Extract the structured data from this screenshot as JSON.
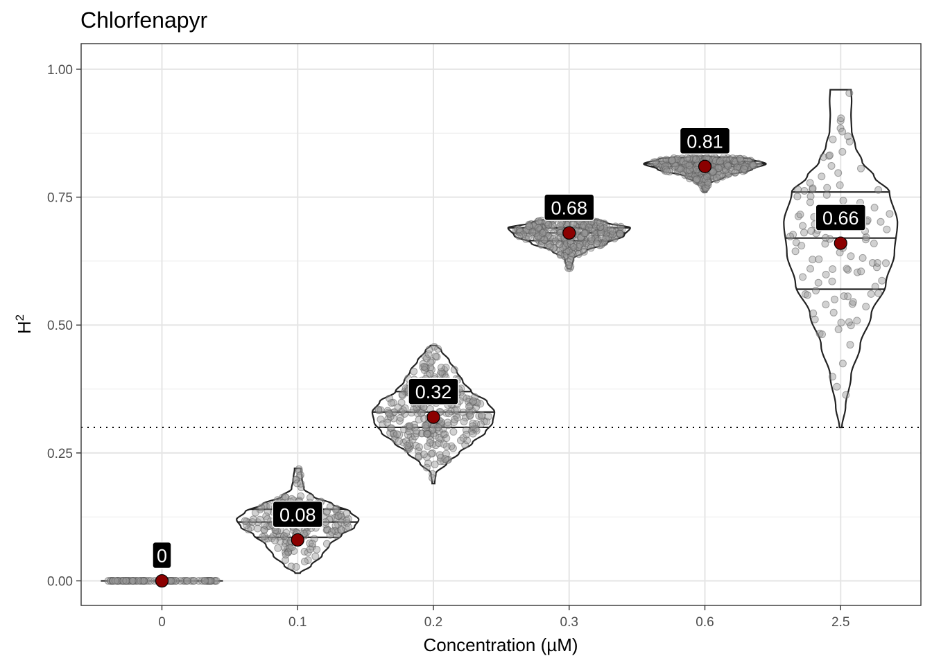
{
  "chart_data": {
    "type": "violin",
    "title": "Chlorfenapyr",
    "xlabel": "Concentration (µM)",
    "ylabel": "H",
    "ylabel_superscript": "2",
    "ylim": [
      -0.048,
      1.05
    ],
    "yticks": [
      0.0,
      0.25,
      0.5,
      0.75,
      1.0
    ],
    "ytick_labels": [
      "0.00",
      "0.25",
      "0.50",
      "0.75",
      "1.00"
    ],
    "categories": [
      "0",
      "0.1",
      "0.2",
      "0.3",
      "0.6",
      "2.5"
    ],
    "threshold_line": 0.3,
    "grid": true,
    "groups": [
      {
        "category": "0",
        "mean": 0.0,
        "label": "0",
        "min": 0.0,
        "max": 0.0,
        "quartiles": [
          0.0,
          0.0,
          0.0
        ],
        "n_points": 80,
        "profile": [
          [
            0.0,
            1.0
          ]
        ]
      },
      {
        "category": "0.1",
        "mean": 0.08,
        "label": "0.08",
        "min": 0.015,
        "max": 0.22,
        "quartiles": [
          0.085,
          0.115,
          0.14
        ],
        "n_points": 200,
        "profile": [
          [
            0.015,
            0.04
          ],
          [
            0.03,
            0.22
          ],
          [
            0.05,
            0.4
          ],
          [
            0.07,
            0.52
          ],
          [
            0.09,
            0.72
          ],
          [
            0.105,
            0.93
          ],
          [
            0.12,
            1.0
          ],
          [
            0.135,
            0.86
          ],
          [
            0.15,
            0.57
          ],
          [
            0.165,
            0.26
          ],
          [
            0.18,
            0.1
          ],
          [
            0.2,
            0.07
          ],
          [
            0.22,
            0.05
          ]
        ]
      },
      {
        "category": "0.2",
        "mean": 0.32,
        "label": "0.32",
        "min": 0.19,
        "max": 0.46,
        "quartiles": [
          0.3,
          0.33,
          0.37
        ],
        "n_points": 300,
        "profile": [
          [
            0.19,
            0.02
          ],
          [
            0.21,
            0.04
          ],
          [
            0.23,
            0.22
          ],
          [
            0.25,
            0.42
          ],
          [
            0.27,
            0.64
          ],
          [
            0.29,
            0.85
          ],
          [
            0.31,
            0.97
          ],
          [
            0.33,
            1.0
          ],
          [
            0.35,
            0.88
          ],
          [
            0.37,
            0.62
          ],
          [
            0.39,
            0.48
          ],
          [
            0.41,
            0.38
          ],
          [
            0.43,
            0.26
          ],
          [
            0.45,
            0.13
          ],
          [
            0.46,
            0.05
          ]
        ]
      },
      {
        "category": "0.3",
        "mean": 0.68,
        "label": "0.68",
        "min": 0.61,
        "max": 0.72,
        "quartiles": [
          0.665,
          0.68,
          0.69
        ],
        "n_points": 300,
        "profile": [
          [
            0.61,
            0.03
          ],
          [
            0.63,
            0.07
          ],
          [
            0.645,
            0.28
          ],
          [
            0.66,
            0.62
          ],
          [
            0.675,
            0.9
          ],
          [
            0.69,
            1.0
          ],
          [
            0.7,
            0.62
          ],
          [
            0.71,
            0.3
          ],
          [
            0.72,
            0.05
          ]
        ]
      },
      {
        "category": "0.6",
        "mean": 0.81,
        "label": "0.81",
        "min": 0.76,
        "max": 0.83,
        "quartiles": [
          0.81,
          0.815,
          0.82
        ],
        "n_points": 300,
        "profile": [
          [
            0.76,
            0.03
          ],
          [
            0.775,
            0.06
          ],
          [
            0.79,
            0.32
          ],
          [
            0.805,
            0.78
          ],
          [
            0.815,
            1.0
          ],
          [
            0.825,
            0.75
          ],
          [
            0.83,
            0.05
          ]
        ]
      },
      {
        "category": "2.5",
        "mean": 0.66,
        "label": "0.66",
        "min": 0.3,
        "max": 0.96,
        "quartiles": [
          0.57,
          0.67,
          0.76
        ],
        "n_points": 110,
        "profile": [
          [
            0.3,
            0.02
          ],
          [
            0.34,
            0.08
          ],
          [
            0.4,
            0.17
          ],
          [
            0.46,
            0.32
          ],
          [
            0.52,
            0.5
          ],
          [
            0.58,
            0.74
          ],
          [
            0.64,
            0.88
          ],
          [
            0.7,
            0.93
          ],
          [
            0.76,
            0.8
          ],
          [
            0.79,
            0.55
          ],
          [
            0.82,
            0.35
          ],
          [
            0.85,
            0.24
          ],
          [
            0.88,
            0.18
          ],
          [
            0.91,
            0.17
          ],
          [
            0.94,
            0.18
          ],
          [
            0.96,
            0.17
          ]
        ]
      }
    ]
  }
}
